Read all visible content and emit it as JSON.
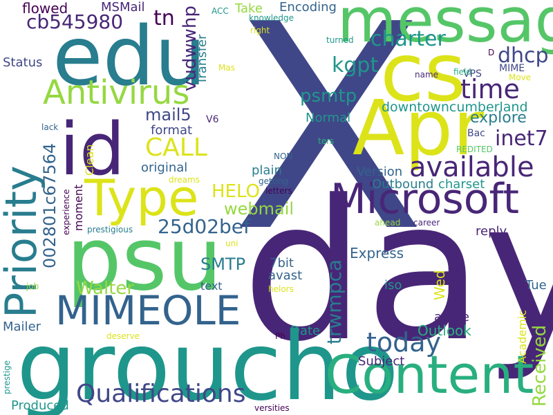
{
  "palette": {
    "c1": "#440154",
    "c2": "#482677",
    "c3": "#404788",
    "c4": "#33638d",
    "c5": "#287d8e",
    "c6": "#1f968b",
    "c7": "#29af7f",
    "c8": "#55c667",
    "c9": "#95d840",
    "c10": "#dce319",
    "c11": "#fde725"
  },
  "words": [
    {
      "text": "X",
      "color": "c3"
    },
    {
      "text": "day",
      "color": "c2"
    },
    {
      "text": "groucho",
      "color": "c6"
    },
    {
      "text": "psu",
      "color": "c8"
    },
    {
      "text": "edu",
      "color": "c5"
    },
    {
      "text": "message",
      "color": "c8"
    },
    {
      "text": "Apr",
      "color": "c10"
    },
    {
      "text": "cs",
      "color": "c10"
    },
    {
      "text": "id",
      "color": "c2"
    },
    {
      "text": "Content",
      "color": "c7"
    },
    {
      "text": "Microsoft",
      "color": "c2"
    },
    {
      "text": "Type",
      "color": "c10"
    },
    {
      "text": "Priority",
      "color": "c5"
    },
    {
      "text": "MIMEOLE",
      "color": "c4"
    },
    {
      "text": "Antivirus",
      "color": "c9"
    },
    {
      "text": "available",
      "color": "c2"
    },
    {
      "text": "Qualifications",
      "color": "c3"
    },
    {
      "text": "today",
      "color": "c4"
    },
    {
      "text": "time",
      "color": "c2"
    },
    {
      "text": "CALL",
      "color": "c10"
    },
    {
      "text": "cb545980",
      "color": "c2"
    },
    {
      "text": "charter",
      "color": "c6"
    },
    {
      "text": "kgpt",
      "color": "c6"
    },
    {
      "text": "vudwwhp",
      "color": "c2"
    },
    {
      "text": "002801c67564",
      "color": "c4"
    },
    {
      "text": "25d02bef",
      "color": "c4"
    },
    {
      "text": "psmtp",
      "color": "c6"
    },
    {
      "text": "dhcp",
      "color": "c3"
    },
    {
      "text": "inet7",
      "color": "c2"
    },
    {
      "text": "mail5",
      "color": "c3"
    },
    {
      "text": "webmail",
      "color": "c9"
    },
    {
      "text": "HELO",
      "color": "c10"
    },
    {
      "text": "SMTP",
      "color": "c5"
    },
    {
      "text": "trwmpca",
      "color": "c5"
    },
    {
      "text": "Received",
      "color": "c9"
    },
    {
      "text": "tn",
      "color": "c1"
    },
    {
      "text": "Walter",
      "color": "c9"
    },
    {
      "text": "downtowncumberland",
      "color": "c6"
    },
    {
      "text": "explore",
      "color": "c5"
    },
    {
      "text": "Outlook",
      "color": "c7"
    },
    {
      "text": "Express",
      "color": "c4"
    },
    {
      "text": "Transfer",
      "color": "c5"
    },
    {
      "text": "Encoding",
      "color": "c4"
    },
    {
      "text": "Take",
      "color": "c9"
    },
    {
      "text": "flowed",
      "color": "c1"
    },
    {
      "text": "MSMail",
      "color": "c2"
    },
    {
      "text": "Status",
      "color": "c3"
    },
    {
      "text": "format",
      "color": "c3"
    },
    {
      "text": "original",
      "color": "c4"
    },
    {
      "text": "Normal",
      "color": "c6"
    },
    {
      "text": "plain",
      "color": "c5"
    },
    {
      "text": "Version",
      "color": "c4"
    },
    {
      "text": "Outbound",
      "color": "c5"
    },
    {
      "text": "charset",
      "color": "c6"
    },
    {
      "text": "reply",
      "color": "c2"
    },
    {
      "text": "7bit",
      "color": "c4"
    },
    {
      "text": "avast",
      "color": "c4"
    },
    {
      "text": "iso",
      "color": "c6"
    },
    {
      "text": "Wed",
      "color": "c10"
    },
    {
      "text": "Tue",
      "color": "c4"
    },
    {
      "text": "arline",
      "color": "c2"
    },
    {
      "text": "Date",
      "color": "c6"
    },
    {
      "text": "Subject",
      "color": "c2"
    },
    {
      "text": "Mailer",
      "color": "c4"
    },
    {
      "text": "Produced",
      "color": "c6"
    },
    {
      "text": "text",
      "color": "c4"
    },
    {
      "text": "Academic",
      "color": "c10"
    },
    {
      "text": "Clean",
      "color": "c10"
    },
    {
      "text": "moment",
      "color": "c1"
    },
    {
      "text": "VPS",
      "color": "c3"
    },
    {
      "text": "MIME",
      "color": "c3"
    },
    {
      "text": "Bac",
      "color": "c3"
    },
    {
      "text": "V6",
      "color": "c2"
    },
    {
      "text": "ACC",
      "color": "c6"
    },
    {
      "text": "knowledge",
      "color": "c6"
    },
    {
      "text": "right",
      "color": "c10"
    },
    {
      "text": "turned",
      "color": "c6"
    },
    {
      "text": "Mas",
      "color": "c10"
    },
    {
      "text": "name",
      "color": "c2"
    },
    {
      "text": "field",
      "color": "c7"
    },
    {
      "text": "Move",
      "color": "c10"
    },
    {
      "text": "D",
      "color": "c1"
    },
    {
      "text": "lack",
      "color": "c4"
    },
    {
      "text": "ters",
      "color": "c7"
    },
    {
      "text": "REDITED",
      "color": "c8"
    },
    {
      "text": "NON",
      "color": "c4"
    },
    {
      "text": "dreams",
      "color": "c10"
    },
    {
      "text": "getting",
      "color": "c4"
    },
    {
      "text": "letters",
      "color": "c1"
    },
    {
      "text": "experience",
      "color": "c1"
    },
    {
      "text": "prestigious",
      "color": "c5"
    },
    {
      "text": "ahead",
      "color": "c9"
    },
    {
      "text": "career",
      "color": "c2"
    },
    {
      "text": "uni",
      "color": "c10"
    },
    {
      "text": "job",
      "color": "c9"
    },
    {
      "text": "helors",
      "color": "c10"
    },
    {
      "text": "Ph",
      "color": "c1"
    },
    {
      "text": "deserve",
      "color": "c10"
    },
    {
      "text": "prestige",
      "color": "c6"
    },
    {
      "text": "versities",
      "color": "c1"
    }
  ]
}
